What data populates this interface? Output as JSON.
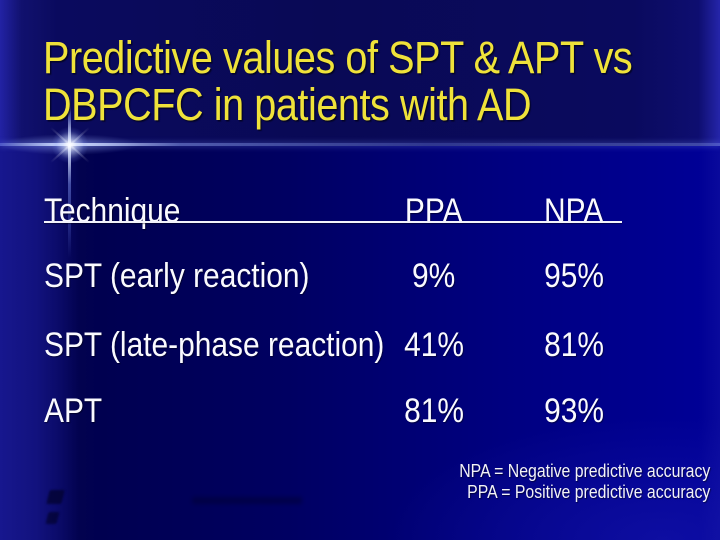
{
  "title": {
    "line1": "Predictive values of SPT & APT vs",
    "line2": "DBPCFC in patients with AD"
  },
  "table": {
    "headers": {
      "technique": "Technique",
      "ppa": "PPA",
      "npa": "NPA"
    },
    "rows": [
      {
        "technique": "SPT (early reaction)",
        "ppa": "9%",
        "npa": "95%"
      },
      {
        "technique": "SPT (late-phase reaction)",
        "ppa": "41%",
        "npa": "81%"
      },
      {
        "technique": "APT",
        "ppa": "81%",
        "npa": "93%"
      }
    ]
  },
  "footnotes": {
    "line1": "NPA = Negative predictive accuracy",
    "line2": "PPA = Positive predictive accuracy"
  },
  "chart_data": {
    "type": "table",
    "title": "Predictive values of SPT & APT vs DBPCFC in patients with AD",
    "columns": [
      "Technique",
      "PPA",
      "NPA"
    ],
    "rows": [
      [
        "SPT (early reaction)",
        "9%",
        "95%"
      ],
      [
        "SPT (late-phase reaction)",
        "41%",
        "81%"
      ],
      [
        "APT",
        "81%",
        "93%"
      ]
    ]
  },
  "colors": {
    "title_text": "#efe23a",
    "body_text": "#fafaff",
    "background_top": "#0a0a5e",
    "background_dark_band": "#000050",
    "background_bottom_right": "#000095",
    "glow_line": "#ffffff"
  }
}
